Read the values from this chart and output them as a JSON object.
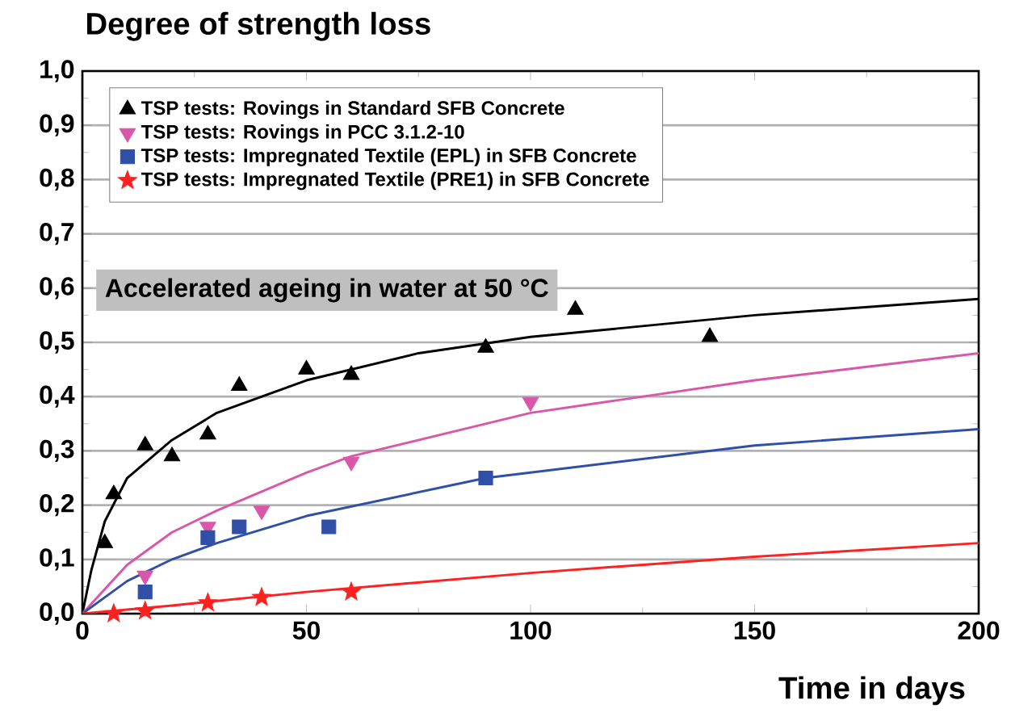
{
  "chart_data": {
    "type": "scatter",
    "ylabel": "Degree of strength loss",
    "xlabel": "Time in days",
    "annotations": [
      "Accelerated ageing in water at 50 °C"
    ],
    "xlim": [
      0,
      200
    ],
    "xticks": [
      0,
      50,
      100,
      150,
      200
    ],
    "ylim": [
      0,
      1
    ],
    "yticks": [
      {
        "value": 0,
        "label": "0,0"
      },
      {
        "value": 0.1,
        "label": "0,1"
      },
      {
        "value": 0.2,
        "label": "0,2"
      },
      {
        "value": 0.3,
        "label": "0,3"
      },
      {
        "value": 0.4,
        "label": "0,4"
      },
      {
        "value": 0.5,
        "label": "0,5"
      },
      {
        "value": 0.6,
        "label": "0,6"
      },
      {
        "value": 0.7,
        "label": "0,7"
      },
      {
        "value": 0.8,
        "label": "0,8"
      },
      {
        "value": 0.9,
        "label": "0,9"
      },
      {
        "value": 1,
        "label": "1,0"
      }
    ],
    "grid": "y",
    "legend": "top left",
    "series": [
      {
        "name": "TSP tests: Rovings in Standard SFB Concrete",
        "color": "#000000",
        "marker": "triangle",
        "x": [
          5,
          7,
          14,
          20,
          28,
          35,
          50,
          60,
          90,
          110,
          140
        ],
        "values": [
          0.13,
          0.22,
          0.31,
          0.29,
          0.33,
          0.42,
          0.45,
          0.44,
          0.49,
          0.56,
          0.51
        ]
      },
      {
        "name": "TSP tests: Rovings in PCC 3.1.2-10",
        "color": "#d957a8",
        "marker": "triangle-down",
        "x": [
          14,
          28,
          40,
          60,
          100
        ],
        "values": [
          0.07,
          0.16,
          0.19,
          0.28,
          0.39
        ]
      },
      {
        "name": "TSP tests: Impregnated Textile (EPL) in SFB Concrete",
        "color": "#3050a8",
        "marker": "square",
        "x": [
          14,
          28,
          35,
          55,
          90
        ],
        "values": [
          0.04,
          0.14,
          0.16,
          0.16,
          0.25
        ]
      },
      {
        "name": "TSP tests: Impregnated Textile (PRE1) in SFB Concrete",
        "color": "#ff2020",
        "marker": "star",
        "x": [
          7,
          14,
          28,
          40,
          60
        ],
        "values": [
          0.0,
          0.005,
          0.02,
          0.03,
          0.04
        ]
      },
      {
        "type": "line",
        "color": "#000000",
        "marker": "none",
        "x": [
          0,
          1,
          2,
          5,
          10,
          20,
          30,
          50,
          75,
          100,
          150,
          200
        ],
        "values": [
          0,
          0.04,
          0.08,
          0.17,
          0.25,
          0.32,
          0.37,
          0.43,
          0.48,
          0.51,
          0.55,
          0.58
        ]
      },
      {
        "type": "line",
        "color": "#d957a8",
        "marker": "none",
        "x": [
          0,
          10,
          20,
          30,
          50,
          60,
          100,
          150,
          200
        ],
        "values": [
          0,
          0.09,
          0.15,
          0.19,
          0.26,
          0.29,
          0.37,
          0.43,
          0.48
        ]
      },
      {
        "type": "line",
        "color": "#3050a8",
        "marker": "none",
        "x": [
          0,
          10,
          20,
          30,
          50,
          90,
          100,
          150,
          200
        ],
        "values": [
          0,
          0.06,
          0.1,
          0.13,
          0.18,
          0.25,
          0.26,
          0.31,
          0.34
        ]
      },
      {
        "type": "line",
        "color": "#ff2020",
        "marker": "none",
        "x": [
          0,
          20,
          50,
          100,
          150,
          200
        ],
        "values": [
          0,
          0.015,
          0.04,
          0.075,
          0.105,
          0.13
        ]
      }
    ]
  }
}
